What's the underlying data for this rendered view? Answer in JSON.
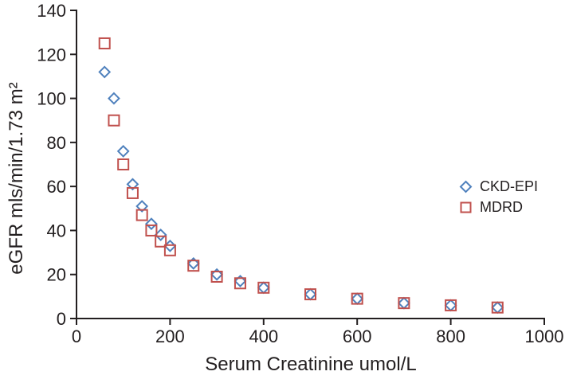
{
  "chart_data": {
    "type": "scatter",
    "title": "",
    "xlabel": "Serum Creatinine umol/L",
    "ylabel": "eGFR mls/min/1.73 m²",
    "xlim": [
      0,
      1000
    ],
    "ylim": [
      0,
      140
    ],
    "xticks": [
      0,
      200,
      400,
      600,
      800,
      1000
    ],
    "yticks": [
      0,
      20,
      40,
      60,
      80,
      100,
      120,
      140
    ],
    "grid": false,
    "legend_position": "middle-right",
    "axis_color": "#231f20",
    "x": [
      60,
      80,
      100,
      120,
      140,
      160,
      180,
      200,
      250,
      300,
      350,
      400,
      500,
      600,
      700,
      800,
      900
    ],
    "series": [
      {
        "name": "CKD-EPI",
        "marker": "diamond",
        "color": "#4f81bd",
        "values": [
          112,
          100,
          76,
          61,
          51,
          43,
          38,
          33,
          25,
          20,
          17,
          14,
          11,
          9,
          7,
          6,
          5
        ]
      },
      {
        "name": "MDRD",
        "marker": "square",
        "color": "#c0504d",
        "values": [
          125,
          90,
          70,
          57,
          47,
          40,
          35,
          31,
          24,
          19,
          16,
          14,
          11,
          9,
          7,
          6,
          5
        ]
      }
    ]
  }
}
